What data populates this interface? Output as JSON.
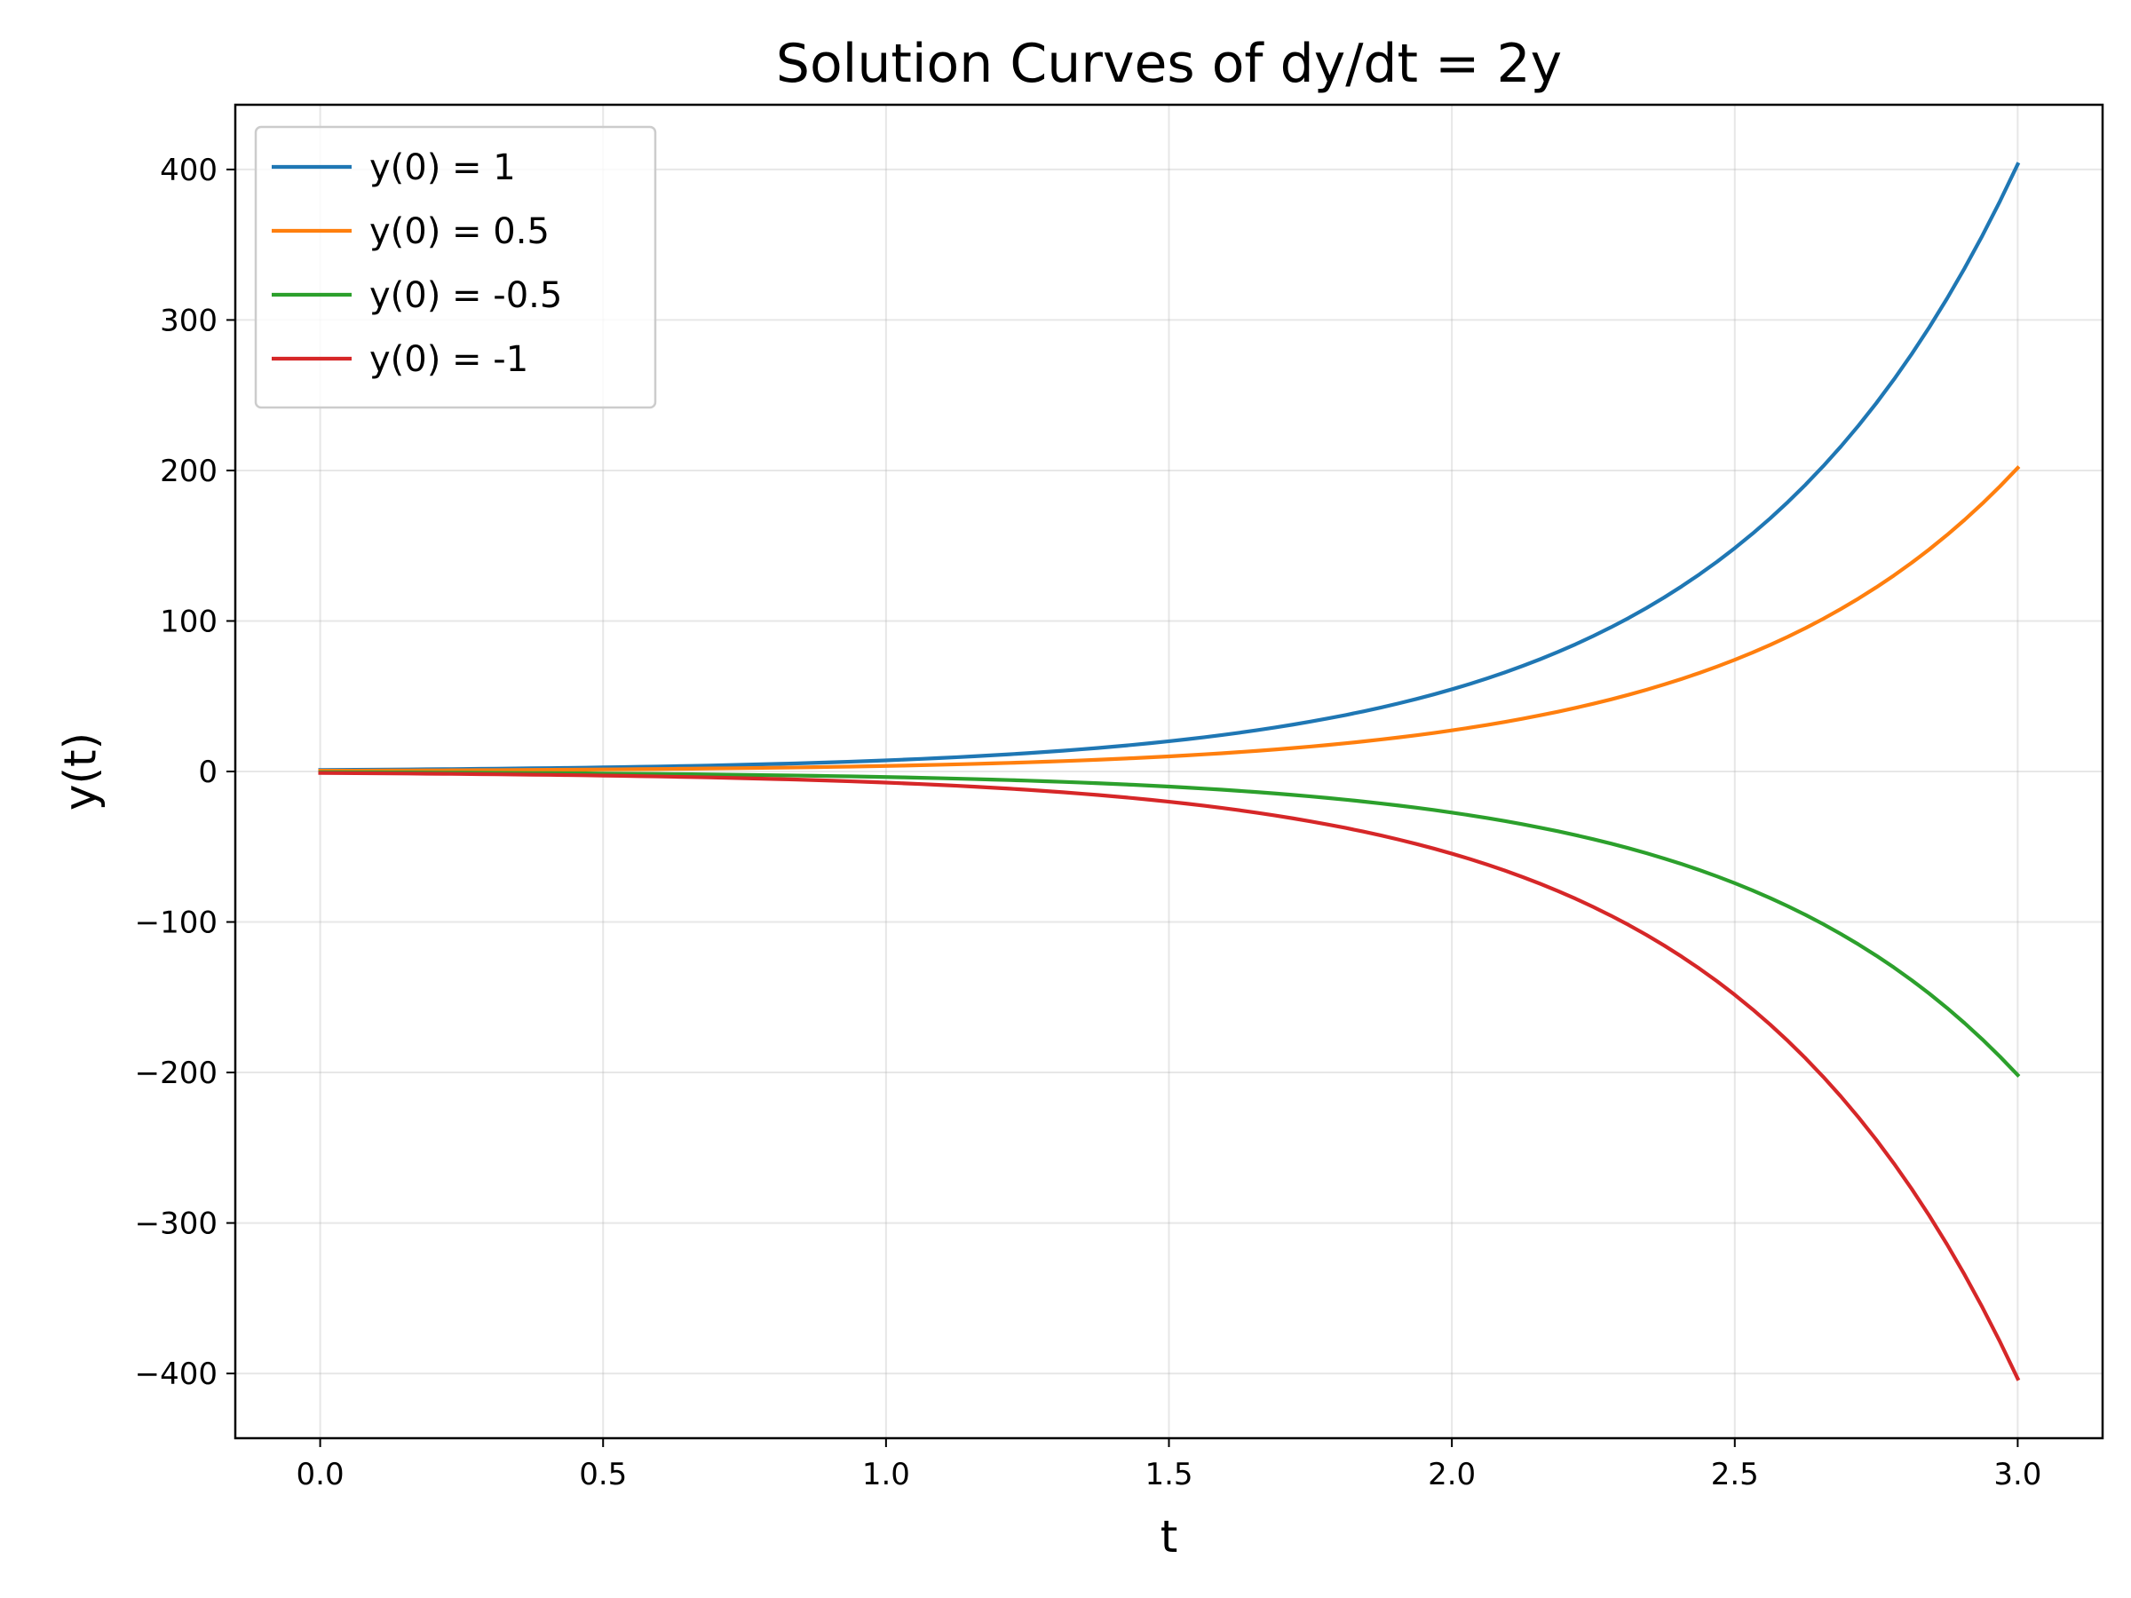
{
  "chart_data": {
    "type": "line",
    "title": "Solution Curves of dy/dt = 2y",
    "xlabel": "t",
    "ylabel": "y(t)",
    "xlim": [
      -0.15,
      3.15
    ],
    "ylim": [
      -443,
      443
    ],
    "x_ticks": [
      0.0,
      0.5,
      1.0,
      1.5,
      2.0,
      2.5,
      3.0
    ],
    "x_tick_labels": [
      "0.0",
      "0.5",
      "1.0",
      "1.5",
      "2.0",
      "2.5",
      "3.0"
    ],
    "y_ticks": [
      400,
      300,
      200,
      100,
      0,
      -100,
      -200,
      -300,
      -400
    ],
    "y_tick_labels": [
      "400",
      "300",
      "200",
      "100",
      "0",
      "−100",
      "−200",
      "−300",
      "−400"
    ],
    "grid": true,
    "legend_position": "top-left",
    "x": [
      0.0,
      0.25,
      0.5,
      0.75,
      1.0,
      1.25,
      1.5,
      1.75,
      2.0,
      2.25,
      2.5,
      2.75,
      3.0
    ],
    "series": [
      {
        "name": "y(0) = 1",
        "color": "#1f77b4",
        "values": [
          1.0,
          1.65,
          2.72,
          4.48,
          7.39,
          12.18,
          20.09,
          33.12,
          54.6,
          90.02,
          148.41,
          244.69,
          403.43
        ]
      },
      {
        "name": "y(0) = 0.5",
        "color": "#ff7f0e",
        "values": [
          0.5,
          0.82,
          1.36,
          2.24,
          3.69,
          6.09,
          10.04,
          16.56,
          27.3,
          45.01,
          74.21,
          122.35,
          201.71
        ]
      },
      {
        "name": "y(0) = -0.5",
        "color": "#2ca02c",
        "values": [
          -0.5,
          -0.82,
          -1.36,
          -2.24,
          -3.69,
          -6.09,
          -10.04,
          -16.56,
          -27.3,
          -45.01,
          -74.21,
          -122.35,
          -201.71
        ]
      },
      {
        "name": "y(0) = -1",
        "color": "#d62728",
        "values": [
          -1.0,
          -1.65,
          -2.72,
          -4.48,
          -7.39,
          -12.18,
          -20.09,
          -33.12,
          -54.6,
          -90.02,
          -148.41,
          -244.69,
          -403.43
        ]
      }
    ]
  }
}
